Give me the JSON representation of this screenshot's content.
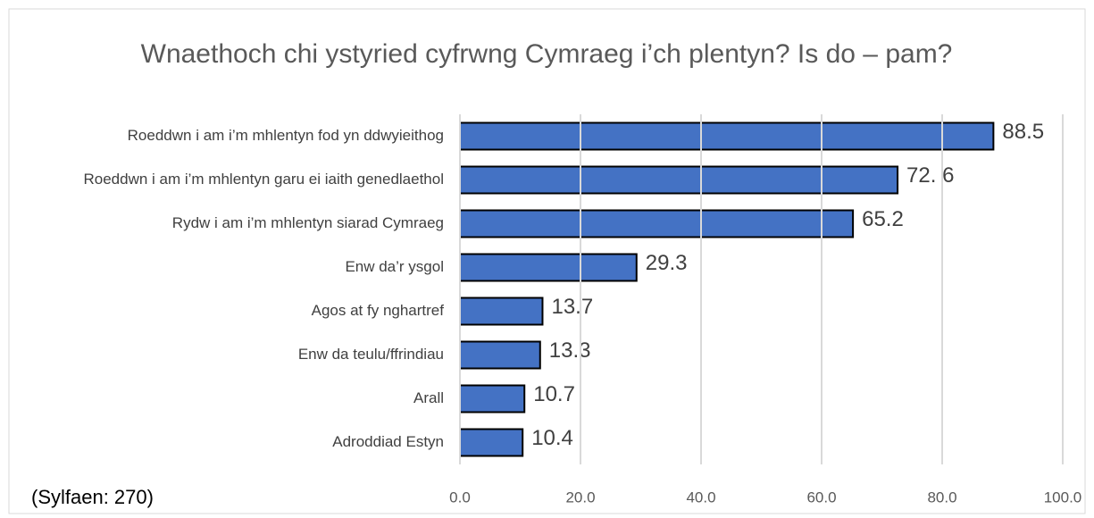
{
  "chart_data": {
    "type": "bar",
    "orientation": "horizontal",
    "title": "Wnaethoch chi ystyried cyfrwng Cymraeg i’ch plentyn? Is do – pam?",
    "footnote": "(Sylfaen: 270)",
    "categories": [
      "Roeddwn i am i’m mhlentyn fod yn ddwyieithog",
      "Roeddwn i am i’m mhlentyn garu ei iaith genedlaethol",
      "Rydw i am i’m mhlentyn siarad Cymraeg",
      "Enw da’r ysgol",
      "Agos at fy nghartref",
      "Enw da teulu/ffrindiau",
      "Arall",
      "Adroddiad Estyn"
    ],
    "values": [
      88.5,
      72.6,
      65.2,
      29.3,
      13.7,
      13.3,
      10.7,
      10.4
    ],
    "value_labels": [
      "88.5",
      "72.  6",
      "65.2",
      "29.3",
      "13.7",
      "13.3",
      "10.7",
      "10.4"
    ],
    "color": "#4472c4",
    "xlim": [
      0,
      100
    ],
    "xticks": [
      {
        "value": 0,
        "label": "0.0"
      },
      {
        "value": 20,
        "label": "20.0"
      },
      {
        "value": 40,
        "label": "40.0"
      },
      {
        "value": 60,
        "label": "60.0"
      },
      {
        "value": 80,
        "label": "80.0"
      },
      {
        "value": 100,
        "label": "100.0"
      }
    ],
    "grid": true
  }
}
